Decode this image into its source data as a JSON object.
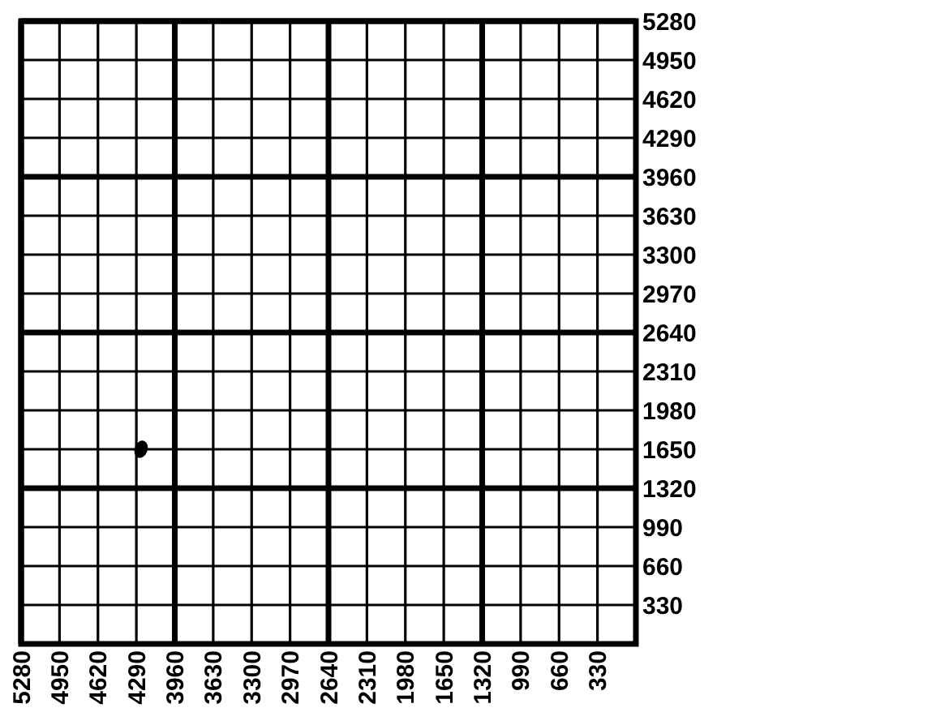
{
  "chart_data": {
    "type": "scatter",
    "x": [
      4250
    ],
    "values": [
      1650
    ],
    "color": "#000000",
    "marker": "circle",
    "xlim": [
      5280,
      0
    ],
    "ylim": [
      0,
      5280
    ],
    "xticks": [
      5280,
      4950,
      4620,
      4290,
      3960,
      3630,
      3300,
      2970,
      2640,
      2310,
      1980,
      1650,
      1320,
      990,
      660,
      330
    ],
    "yticks": [
      5280,
      4950,
      4620,
      4290,
      3960,
      3630,
      3300,
      2970,
      2640,
      2310,
      1980,
      1650,
      1320,
      990,
      660,
      330
    ],
    "grid": true
  }
}
